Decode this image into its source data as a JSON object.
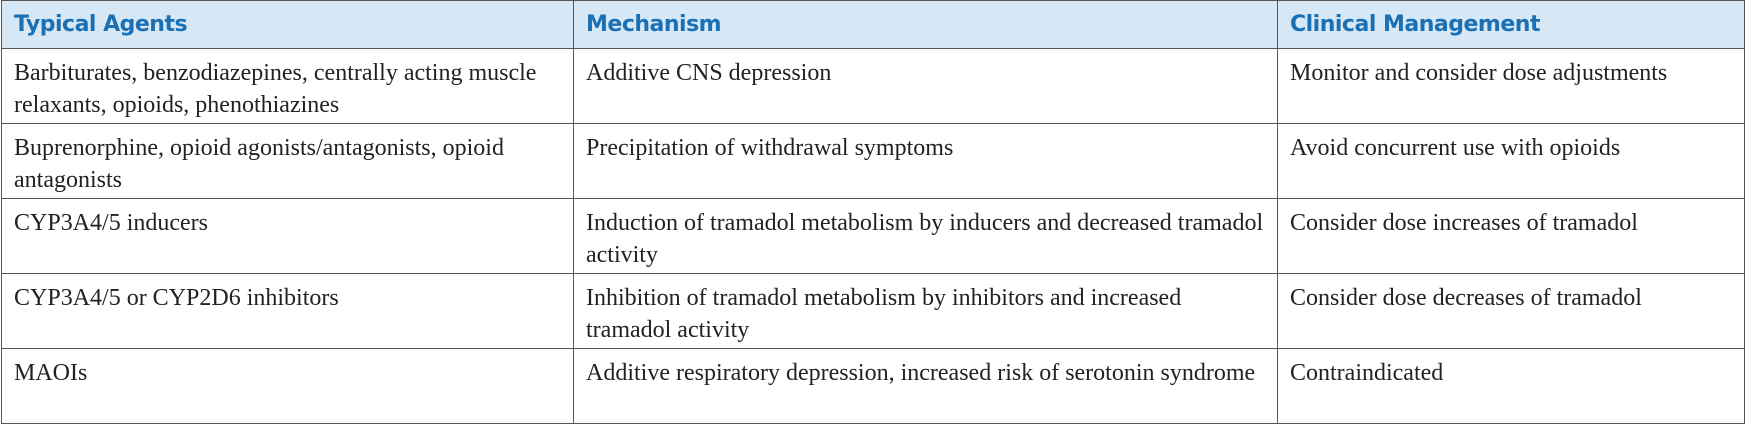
{
  "table": {
    "header": [
      "Typical Agents",
      "Mechanism",
      "Clinical Management"
    ],
    "rows": [
      [
        "Barbiturates, benzodiazepines, centrally acting muscle relaxants, opioids, phenothiazines",
        "Additive CNS depression",
        "Monitor and consider dose adjustments"
      ],
      [
        "Buprenorphine, opioid agonists/antagonists, opioid antagonists",
        "Precipitation of withdrawal symptoms",
        "Avoid concurrent use with opioids"
      ],
      [
        "CYP3A4/5 inducers",
        "Induction of tramadol metabolism by inducers and decreased tramadol activity",
        "Consider dose increases of tramadol"
      ],
      [
        "CYP3A4/5 or CYP2D6 inhibitors",
        "Inhibition of tramadol metabolism by inhibitors and increased tramadol activity",
        "Consider dose decreases of tramadol"
      ],
      [
        "MAOIs",
        "Additive respiratory depression, increased risk of serotonin syndrome",
        "Contraindicated"
      ]
    ]
  }
}
